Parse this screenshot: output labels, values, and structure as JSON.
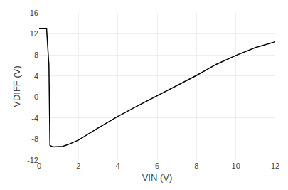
{
  "chart_data": {
    "type": "line",
    "xlabel": "VIN (V)",
    "ylabel": "VDIFF (V)",
    "x": [
      0.0,
      0.38,
      0.5,
      0.55,
      0.7,
      1.0,
      1.2,
      1.5,
      2.0,
      3.0,
      4.0,
      5.0,
      6.0,
      7.0,
      8.0,
      9.0,
      10.0,
      11.0,
      12.0
    ],
    "values": [
      13.0,
      13.0,
      6.0,
      -9.2,
      -9.5,
      -9.5,
      -9.4,
      -9.0,
      -8.2,
      -5.9,
      -3.7,
      -1.7,
      0.2,
      2.2,
      4.1,
      6.2,
      7.9,
      9.4,
      10.5
    ],
    "color": "#000000",
    "xlim": [
      0,
      12
    ],
    "ylim": [
      -12,
      16
    ],
    "xticks": [
      0,
      2,
      4,
      6,
      8,
      10,
      12
    ],
    "yticks": [
      -12,
      -8,
      -4,
      0,
      4,
      8,
      12,
      16
    ],
    "grid": true
  }
}
